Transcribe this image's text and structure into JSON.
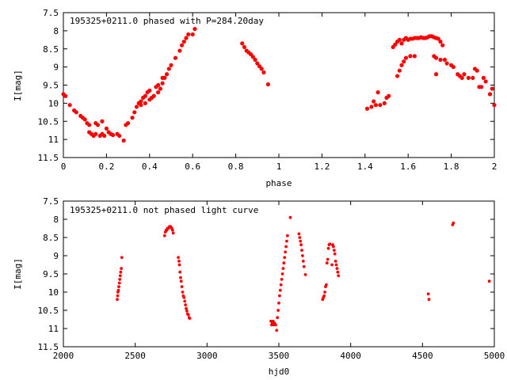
{
  "chart_data": [
    {
      "type": "scatter",
      "title": "195325+0211.0 phased with P=284.20day",
      "xlabel": "phase",
      "ylabel": "I[mag]",
      "xlim": [
        0,
        2
      ],
      "ylim": [
        11.5,
        7.5
      ],
      "y_inverted": true,
      "xticks": [
        0,
        0.2,
        0.4,
        0.6,
        0.8,
        1,
        1.2,
        1.4,
        1.6,
        1.8,
        2
      ],
      "xtick_labels": [
        "0",
        "0.2",
        "0.4",
        "0.6",
        "0.8",
        "1",
        "1.2",
        "1.4",
        "1.6",
        "1.8",
        "2"
      ],
      "yticks": [
        7.5,
        8,
        8.5,
        9,
        9.5,
        10,
        10.5,
        11,
        11.5
      ],
      "ytick_labels": [
        "7.5",
        "8",
        "8.5",
        "9",
        "9.5",
        "10",
        "10.5",
        "11",
        "11.5"
      ],
      "grid": false,
      "marker_color": "#ff0000",
      "points": [
        [
          0.0,
          9.75
        ],
        [
          0.01,
          9.8
        ],
        [
          0.03,
          10.05
        ],
        [
          0.05,
          10.2
        ],
        [
          0.06,
          10.25
        ],
        [
          0.08,
          10.35
        ],
        [
          0.09,
          10.4
        ],
        [
          0.1,
          10.45
        ],
        [
          0.11,
          10.55
        ],
        [
          0.12,
          10.6
        ],
        [
          0.12,
          10.8
        ],
        [
          0.13,
          10.85
        ],
        [
          0.14,
          10.9
        ],
        [
          0.15,
          10.55
        ],
        [
          0.15,
          10.85
        ],
        [
          0.16,
          10.6
        ],
        [
          0.17,
          10.9
        ],
        [
          0.18,
          10.5
        ],
        [
          0.18,
          10.85
        ],
        [
          0.19,
          10.9
        ],
        [
          0.2,
          10.7
        ],
        [
          0.21,
          10.8
        ],
        [
          0.22,
          10.85
        ],
        [
          0.23,
          10.88
        ],
        [
          0.25,
          10.85
        ],
        [
          0.26,
          10.9
        ],
        [
          0.28,
          11.03
        ],
        [
          0.29,
          10.6
        ],
        [
          0.3,
          10.55
        ],
        [
          0.32,
          10.4
        ],
        [
          0.33,
          10.25
        ],
        [
          0.34,
          10.1
        ],
        [
          0.35,
          10.0
        ],
        [
          0.36,
          9.95
        ],
        [
          0.37,
          9.85
        ],
        [
          0.38,
          9.8
        ],
        [
          0.39,
          9.7
        ],
        [
          0.4,
          9.65
        ],
        [
          0.36,
          10.05
        ],
        [
          0.38,
          10.0
        ],
        [
          0.4,
          9.9
        ],
        [
          0.41,
          9.85
        ],
        [
          0.42,
          9.8
        ],
        [
          0.44,
          9.7
        ],
        [
          0.45,
          9.6
        ],
        [
          0.46,
          9.45
        ],
        [
          0.47,
          9.3
        ],
        [
          0.48,
          9.2
        ],
        [
          0.43,
          9.55
        ],
        [
          0.44,
          9.5
        ],
        [
          0.46,
          9.3
        ],
        [
          0.49,
          9.05
        ],
        [
          0.5,
          8.95
        ],
        [
          0.52,
          8.75
        ],
        [
          0.54,
          8.55
        ],
        [
          0.55,
          8.4
        ],
        [
          0.56,
          8.3
        ],
        [
          0.57,
          8.2
        ],
        [
          0.58,
          8.1
        ],
        [
          0.6,
          8.1
        ],
        [
          0.61,
          7.95
        ],
        [
          0.83,
          8.35
        ],
        [
          0.84,
          8.45
        ],
        [
          0.85,
          8.55
        ],
        [
          0.86,
          8.6
        ],
        [
          0.87,
          8.65
        ],
        [
          0.88,
          8.72
        ],
        [
          0.89,
          8.8
        ],
        [
          0.9,
          8.9
        ],
        [
          0.91,
          8.98
        ],
        [
          0.92,
          9.05
        ],
        [
          0.93,
          9.15
        ],
        [
          0.95,
          9.48
        ],
        [
          1.41,
          10.15
        ],
        [
          1.43,
          10.1
        ],
        [
          1.44,
          9.95
        ],
        [
          1.45,
          10.05
        ],
        [
          1.46,
          9.7
        ],
        [
          1.47,
          10.05
        ],
        [
          1.49,
          10.0
        ],
        [
          1.5,
          9.85
        ],
        [
          1.51,
          9.8
        ],
        [
          1.53,
          8.45
        ],
        [
          1.54,
          8.38
        ],
        [
          1.55,
          8.3
        ],
        [
          1.56,
          8.25
        ],
        [
          1.57,
          8.35
        ],
        [
          1.58,
          8.25
        ],
        [
          1.59,
          8.2
        ],
        [
          1.6,
          8.25
        ],
        [
          1.61,
          8.22
        ],
        [
          1.62,
          8.22
        ],
        [
          1.63,
          8.2
        ],
        [
          1.64,
          8.2
        ],
        [
          1.65,
          8.2
        ],
        [
          1.66,
          8.18
        ],
        [
          1.67,
          8.2
        ],
        [
          1.68,
          8.2
        ],
        [
          1.69,
          8.18
        ],
        [
          1.7,
          8.15
        ],
        [
          1.71,
          8.15
        ],
        [
          1.72,
          8.18
        ],
        [
          1.73,
          8.2
        ],
        [
          1.74,
          8.22
        ],
        [
          1.75,
          8.3
        ],
        [
          1.76,
          8.4
        ],
        [
          1.55,
          9.25
        ],
        [
          1.56,
          9.1
        ],
        [
          1.57,
          8.95
        ],
        [
          1.58,
          8.85
        ],
        [
          1.59,
          8.75
        ],
        [
          1.61,
          8.7
        ],
        [
          1.63,
          8.7
        ],
        [
          1.72,
          8.7
        ],
        [
          1.73,
          8.75
        ],
        [
          1.75,
          8.8
        ],
        [
          1.77,
          8.8
        ],
        [
          1.78,
          8.9
        ],
        [
          1.8,
          8.95
        ],
        [
          1.81,
          9.0
        ],
        [
          1.83,
          9.2
        ],
        [
          1.84,
          9.25
        ],
        [
          1.85,
          9.3
        ],
        [
          1.86,
          9.2
        ],
        [
          1.88,
          9.3
        ],
        [
          1.9,
          9.3
        ],
        [
          1.91,
          9.05
        ],
        [
          1.92,
          9.1
        ],
        [
          1.93,
          9.55
        ],
        [
          1.94,
          9.55
        ],
        [
          1.95,
          9.3
        ],
        [
          1.96,
          9.4
        ],
        [
          1.98,
          9.75
        ],
        [
          1.99,
          9.6
        ],
        [
          2.0,
          10.05
        ],
        [
          1.73,
          9.2
        ],
        [
          1.98,
          9.75
        ]
      ]
    },
    {
      "type": "scatter",
      "title": "195325+0211.0 not phased light curve",
      "xlabel": "hjd0",
      "ylabel": "I[mag]",
      "xlim": [
        2000,
        5000
      ],
      "ylim": [
        11.5,
        7.5
      ],
      "y_inverted": true,
      "xticks": [
        2000,
        2500,
        3000,
        3500,
        4000,
        4500,
        5000
      ],
      "xtick_labels": [
        "2000",
        "2500",
        "3000",
        "3500",
        "4000",
        "4500",
        "5000"
      ],
      "yticks": [
        7.5,
        8,
        8.5,
        9,
        9.5,
        10,
        10.5,
        11,
        11.5
      ],
      "ytick_labels": [
        "7.5",
        "8",
        "8.5",
        "9",
        "9.5",
        "10",
        "10.5",
        "11",
        "11.5"
      ],
      "grid": false,
      "marker_color": "#ff0000",
      "points": [
        [
          2375,
          10.2
        ],
        [
          2378,
          10.1
        ],
        [
          2380,
          10.0
        ],
        [
          2383,
          9.95
        ],
        [
          2386,
          9.85
        ],
        [
          2390,
          9.75
        ],
        [
          2393,
          9.65
        ],
        [
          2396,
          9.55
        ],
        [
          2399,
          9.45
        ],
        [
          2403,
          9.35
        ],
        [
          2407,
          9.05
        ],
        [
          2705,
          8.45
        ],
        [
          2710,
          8.35
        ],
        [
          2715,
          8.3
        ],
        [
          2720,
          8.3
        ],
        [
          2725,
          8.25
        ],
        [
          2730,
          8.25
        ],
        [
          2735,
          8.22
        ],
        [
          2740,
          8.2
        ],
        [
          2745,
          8.2
        ],
        [
          2750,
          8.22
        ],
        [
          2755,
          8.25
        ],
        [
          2760,
          8.3
        ],
        [
          2765,
          8.38
        ],
        [
          2800,
          9.05
        ],
        [
          2805,
          9.15
        ],
        [
          2808,
          9.25
        ],
        [
          2812,
          9.45
        ],
        [
          2816,
          9.6
        ],
        [
          2820,
          9.7
        ],
        [
          2825,
          9.85
        ],
        [
          2830,
          10.0
        ],
        [
          2835,
          10.1
        ],
        [
          2840,
          10.15
        ],
        [
          2845,
          10.25
        ],
        [
          2850,
          10.35
        ],
        [
          2855,
          10.45
        ],
        [
          2860,
          10.52
        ],
        [
          2865,
          10.6
        ],
        [
          2870,
          10.62
        ],
        [
          2875,
          10.7
        ],
        [
          2880,
          10.72
        ],
        [
          3445,
          10.8
        ],
        [
          3450,
          10.9
        ],
        [
          3455,
          10.85
        ],
        [
          3460,
          10.8
        ],
        [
          3465,
          10.9
        ],
        [
          3470,
          10.85
        ],
        [
          3478,
          10.9
        ],
        [
          3485,
          11.05
        ],
        [
          3490,
          10.7
        ],
        [
          3495,
          10.5
        ],
        [
          3500,
          10.3
        ],
        [
          3505,
          10.1
        ],
        [
          3510,
          9.95
        ],
        [
          3515,
          9.8
        ],
        [
          3520,
          9.65
        ],
        [
          3525,
          9.5
        ],
        [
          3530,
          9.35
        ],
        [
          3535,
          9.2
        ],
        [
          3540,
          9.05
        ],
        [
          3545,
          8.9
        ],
        [
          3550,
          8.75
        ],
        [
          3555,
          8.6
        ],
        [
          3560,
          8.45
        ],
        [
          3580,
          7.95
        ],
        [
          3640,
          8.4
        ],
        [
          3645,
          8.5
        ],
        [
          3650,
          8.6
        ],
        [
          3655,
          8.7
        ],
        [
          3660,
          8.85
        ],
        [
          3665,
          9.0
        ],
        [
          3670,
          9.15
        ],
        [
          3675,
          9.3
        ],
        [
          3685,
          9.52
        ],
        [
          3805,
          10.2
        ],
        [
          3810,
          10.15
        ],
        [
          3815,
          10.1
        ],
        [
          3820,
          10.0
        ],
        [
          3825,
          9.85
        ],
        [
          3830,
          9.8
        ],
        [
          3835,
          9.2
        ],
        [
          3840,
          9.1
        ],
        [
          3845,
          8.8
        ],
        [
          3850,
          8.7
        ],
        [
          3855,
          8.68
        ],
        [
          3870,
          9.25
        ],
        [
          3875,
          8.7
        ],
        [
          3880,
          8.75
        ],
        [
          3885,
          8.85
        ],
        [
          3890,
          8.95
        ],
        [
          3895,
          9.15
        ],
        [
          3900,
          9.25
        ],
        [
          3905,
          9.35
        ],
        [
          3910,
          9.45
        ],
        [
          3915,
          9.55
        ],
        [
          4540,
          10.05
        ],
        [
          4545,
          10.2
        ],
        [
          4710,
          8.15
        ],
        [
          4715,
          8.1
        ],
        [
          4965,
          9.7
        ]
      ]
    }
  ]
}
